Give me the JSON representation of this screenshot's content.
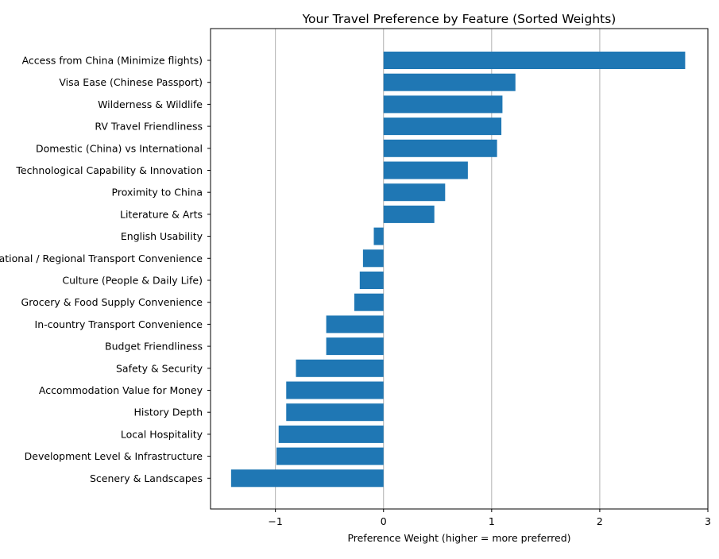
{
  "chart_data": {
    "type": "bar",
    "orientation": "horizontal",
    "title": "Your Travel Preference by Feature (Sorted Weights)",
    "xlabel": "Preference Weight (higher = more preferred)",
    "ylabel": "",
    "xlim": [
      -1.6,
      3.0
    ],
    "xticks": [
      -1,
      0,
      1,
      2,
      3
    ],
    "xtick_labels": [
      "−1",
      "0",
      "1",
      "2",
      "3"
    ],
    "grid": "x",
    "bar_color": "#1f77b4",
    "categories": [
      "Access from China (Minimize flights)",
      "Visa Ease (Chinese Passport)",
      "Wilderness & Wildlife",
      "RV Travel Friendliness",
      "Domestic (China) vs International",
      "Technological Capability & Innovation",
      "Proximity to China",
      "Literature & Arts",
      "English Usability",
      "International / Regional Transport Convenience",
      "Culture (People & Daily Life)",
      "Grocery & Food Supply Convenience",
      "In-country Transport Convenience",
      "Budget Friendliness",
      "Safety & Security",
      "Accommodation Value for Money",
      "History Depth",
      "Local Hospitality",
      "Development Level & Infrastructure",
      "Scenery & Landscapes"
    ],
    "values": [
      2.79,
      1.22,
      1.1,
      1.09,
      1.05,
      0.78,
      0.57,
      0.47,
      -0.09,
      -0.19,
      -0.22,
      -0.27,
      -0.53,
      -0.53,
      -0.81,
      -0.9,
      -0.9,
      -0.97,
      -0.99,
      -1.41
    ]
  }
}
